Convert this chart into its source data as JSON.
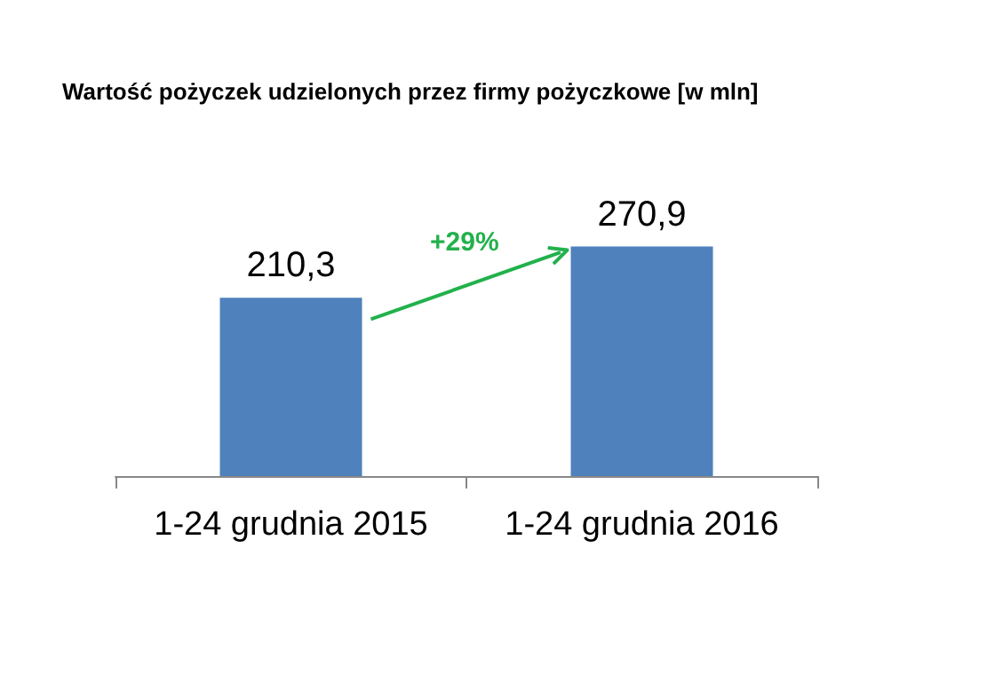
{
  "chart_data": {
    "type": "bar",
    "title": "Wartość pożyczek udzielonych przez firmy pożyczkowe [w mln]",
    "categories": [
      "1-24 grudnia 2015",
      "1-24 grudnia 2016"
    ],
    "values": [
      210.3,
      270.9
    ],
    "color": "#4f81bd",
    "value_labels": [
      "210,3",
      "270,9"
    ],
    "annotations": [
      "+29%"
    ]
  }
}
